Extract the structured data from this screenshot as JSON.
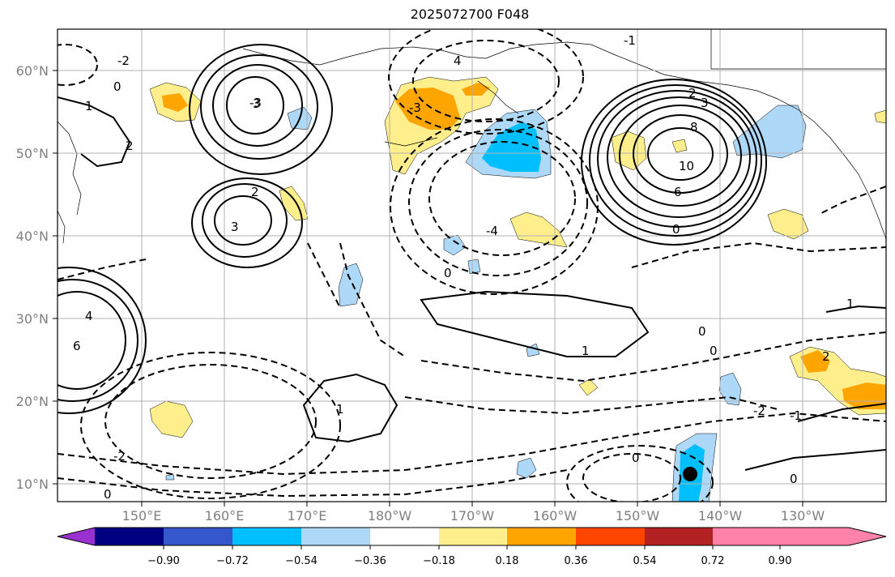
{
  "title": "2025072700 F048",
  "map": {
    "lat_labels": [
      "60°N",
      "50°N",
      "40°N",
      "30°N",
      "20°N",
      "10°N"
    ],
    "lon_labels": [
      "150°E",
      "160°E",
      "170°E",
      "180°W",
      "170°W",
      "160°W",
      "150°W",
      "140°W",
      "130°W"
    ],
    "contour_labels": [
      "-2",
      "0",
      "1",
      "2",
      "3",
      "-3",
      "4",
      "-4",
      "8",
      "10",
      "6",
      "0",
      "-1",
      "1",
      "2",
      "3",
      "6",
      "4",
      "-2",
      "0",
      "1",
      "0",
      "-2",
      "0",
      "-1",
      "1",
      "-3",
      "0",
      "2",
      "3",
      "2",
      "0",
      "0"
    ]
  },
  "colorbar": {
    "ticks": [
      "−0.90",
      "−0.72",
      "−0.54",
      "−0.36",
      "−0.18",
      "0.18",
      "0.36",
      "0.54",
      "0.72",
      "0.90"
    ],
    "colors": [
      "#9b30d0",
      "#000080",
      "#3557cc",
      "#00bfff",
      "#add8f7",
      "#ffffff",
      "#ffee8c",
      "#ffa500",
      "#ff4500",
      "#b22222",
      "#ff82ab"
    ]
  },
  "marker": {
    "label": "location-marker"
  }
}
